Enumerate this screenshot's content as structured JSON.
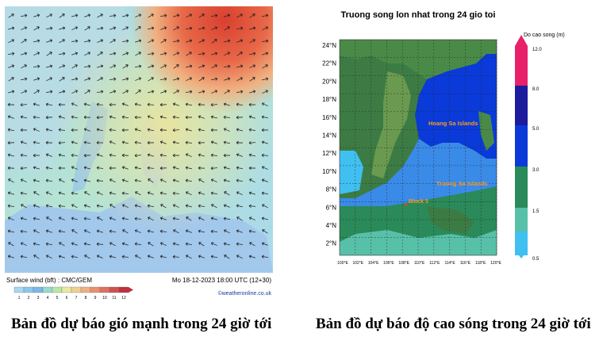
{
  "wind_map": {
    "footer_left": "Surface wind (bft) : CMC/GEM",
    "footer_right": "Mo 18-12-2023 18:00 UTC (12+30)",
    "credit": "©weatheronline.co.uk",
    "scale_labels": [
      "1",
      "2",
      "3",
      "4",
      "5",
      "6",
      "7",
      "8",
      "9",
      "10",
      "11",
      "12"
    ],
    "scale_colors": [
      "#a8d8f0",
      "#8cc8ec",
      "#7ab8e8",
      "#9ad8d0",
      "#b8e8a8",
      "#e8e8a0",
      "#f0d090",
      "#f0b080",
      "#e89070",
      "#e07060",
      "#d05050",
      "#c03040"
    ]
  },
  "wave_map": {
    "title": "Truong song lon nhat trong 24 gio toi",
    "legend_title": "Do cao song (m)",
    "lat_labels": [
      "24°N",
      "22°N",
      "20°N",
      "18°N",
      "16°N",
      "14°N",
      "12°N",
      "10°N",
      "8°N",
      "6°N",
      "4°N",
      "2°N"
    ],
    "lon_labels": [
      "100°E",
      "102°E",
      "104°E",
      "106°E",
      "108°E",
      "110°E",
      "112°E",
      "114°E",
      "116°E",
      "118°E",
      "120°E"
    ],
    "legend_ticks": [
      "12.0",
      "8.0",
      "5.0",
      "3.0",
      "1.5",
      "0.5"
    ],
    "legend_colors": [
      "#e8206a",
      "#1c1c9c",
      "#0a3ad8",
      "#2a8a5a",
      "#58c0a8",
      "#40c0f0"
    ],
    "places": [
      "Hoang Sa Islands",
      "Truong Sa Islands",
      "Block 5"
    ]
  },
  "captions": {
    "left": "Bản đồ dự báo gió mạnh trong 24 giờ tới",
    "right": "Bản đồ dự báo độ cao sóng trong 24 giờ tới"
  }
}
